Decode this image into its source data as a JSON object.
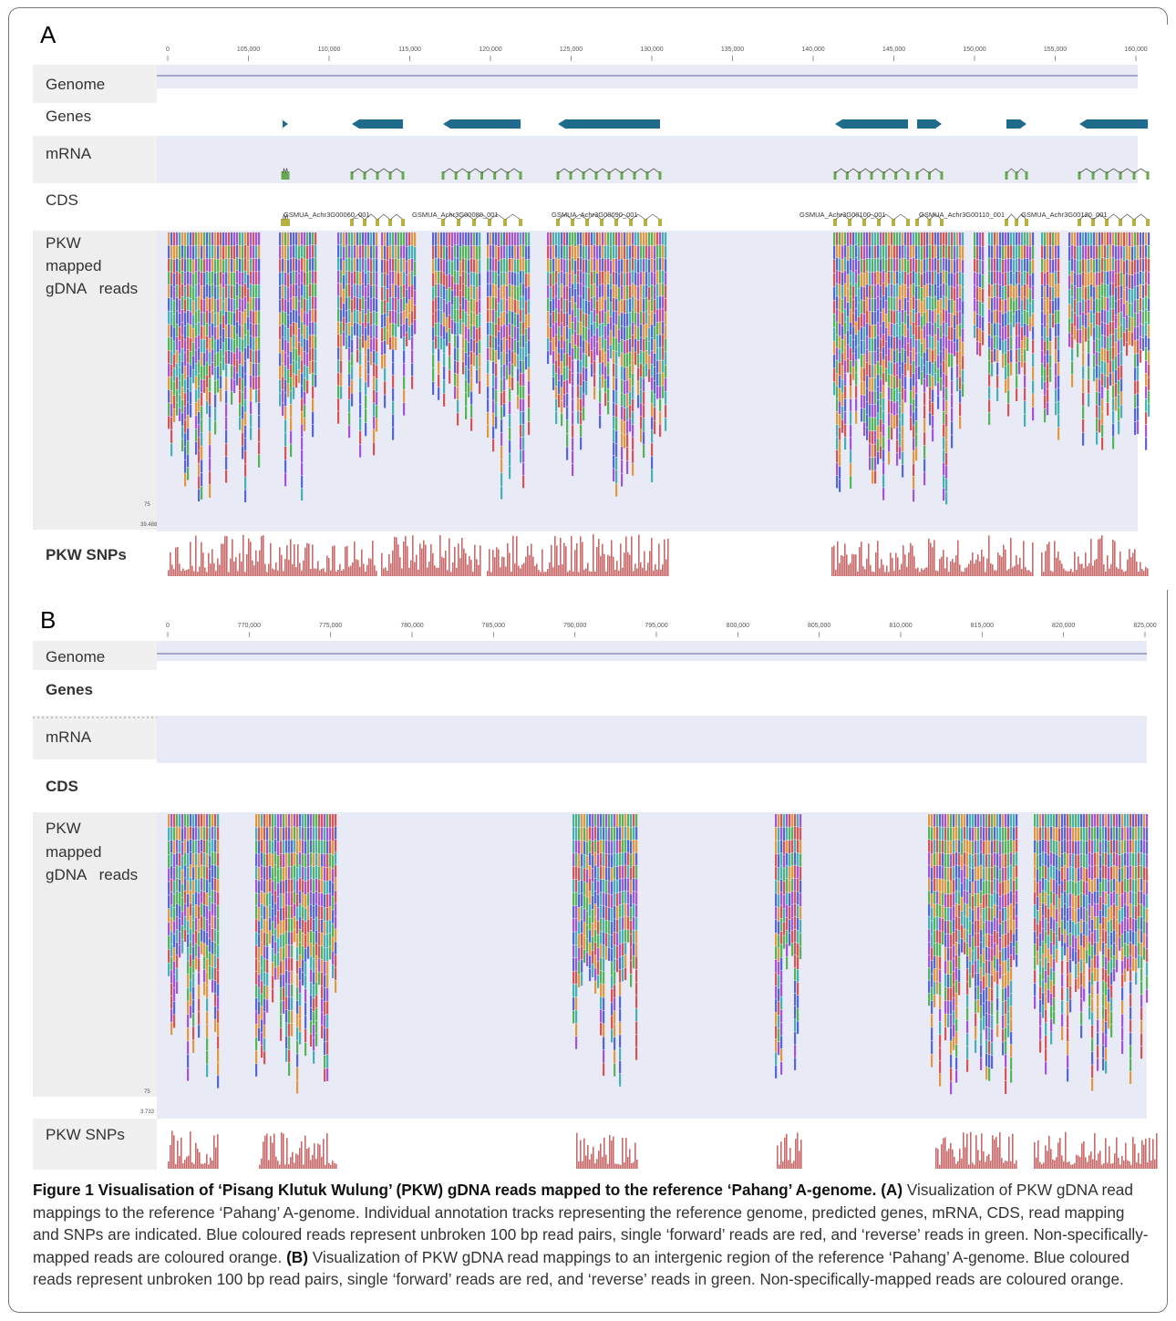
{
  "panel_a": {
    "letter": "A",
    "ticks": [
      "0",
      "105,000",
      "110,000",
      "115,000",
      "120,000",
      "125,000",
      "130,000",
      "135,000",
      "140,000",
      "145,000",
      "150,000",
      "155,000",
      "160,000"
    ],
    "tracks": {
      "genome": "Genome",
      "genes": "Genes",
      "mrna": "mRNA",
      "cds": "CDS",
      "reads_line1": "PKW",
      "reads_line2": "mapped",
      "reads_line3": "gDNA   reads",
      "snps": "PKW SNPs"
    },
    "cds_labels": [
      "GSMUA_Achr3G00060_001",
      "GSMUA_Achr3G00080_001",
      "GSMUA_Achr3G00090_001",
      "GSMUA_Achr3G00100_001",
      "GSMUA_Achr3G00110_001",
      "GSMUA_Achr3G00120_001"
    ],
    "read_depth_label": "75",
    "snp_max_label": "39.488"
  },
  "panel_b": {
    "letter": "B",
    "ticks": [
      "0",
      "770,000",
      "775,000",
      "780,000",
      "785,000",
      "790,000",
      "795,000",
      "800,000",
      "805,000",
      "810,000",
      "815,000",
      "820,000",
      "825,000"
    ],
    "tracks": {
      "genome": "Genome",
      "genes": "Genes",
      "mrna": "mRNA",
      "cds": "CDS",
      "reads_line1": "PKW",
      "reads_line2": "mapped",
      "reads_line3": "gDNA   reads",
      "snps": "PKW SNPs"
    },
    "read_depth_label": "75",
    "snp_max_label": "3.733"
  },
  "caption": {
    "title": "Figure 1 Visualisation of ‘Pisang Klutuk Wulung’ (PKW) gDNA reads mapped to the reference ‘Pahang’ A-genome.",
    "label_a": "(A)",
    "text_a": "Visualization of PKW gDNA read mappings to the reference ‘Pahang’ A-genome. Individual annotation tracks representing the reference genome, predicted genes, mRNA, CDS, read mapping and SNPs are indicated. Blue coloured reads represent unbroken 100 bp read pairs, single ‘forward’ reads are red, and ‘reverse’ reads in green. Non-specifically-mapped reads are coloured orange.",
    "label_b": "(B)",
    "text_b": "Visualization of PKW gDNA read mappings to an intergenic region of the reference ‘Pahang’ A-genome. Blue coloured reads represent unbroken 100 bp read pairs, single ‘forward’ reads are red, and ‘reverse’ reads in green. Non-specifically-mapped reads are coloured orange."
  },
  "colors": {
    "track_band": "#e8eaf6",
    "label_band": "#f0f0f0",
    "gene_blue": "#1f6b8e",
    "mrna_green": "#6aa84f",
    "cds_yellow": "#b8b040",
    "snp_red": "#c96a6a",
    "read_colors": [
      "#3b4fd0",
      "#d23a3a",
      "#3caa3c",
      "#e08a1e",
      "#9a3ad0",
      "#2aa6a6"
    ]
  }
}
